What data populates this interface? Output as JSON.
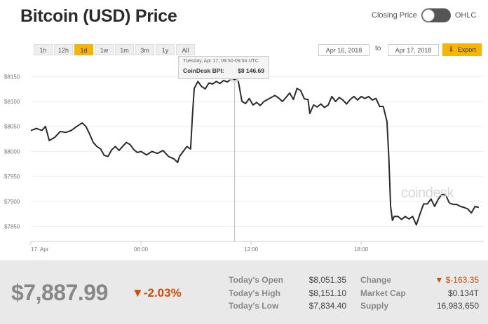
{
  "title": "Bitcoin (USD) Price",
  "toggle": {
    "left_label": "Closing Price",
    "right_label": "OHLC"
  },
  "ranges": [
    "1h",
    "12h",
    "1d",
    "1w",
    "1m",
    "3m",
    "1y",
    "All"
  ],
  "active_range": "1d",
  "date_from": "Apr 16, 2018",
  "date_to_label": "to",
  "date_to": "Apr 17, 2018",
  "export_label": "Export",
  "tooltip": {
    "date": "Tuesday, Apr 17, 09:50-09:54 UTC",
    "label": "CoinDesk BPI:",
    "value": "$8 146.69"
  },
  "watermark": "coindesk",
  "summary": {
    "price": "$7,887.99",
    "change_pct": "-2.03%",
    "stats": [
      {
        "label": "Today's Open",
        "value": "$8,051.35"
      },
      {
        "label": "Today's High",
        "value": "$8,151.10"
      },
      {
        "label": "Today's Low",
        "value": "$7,834.40"
      },
      {
        "label": "Change",
        "value": "$-163.35",
        "negative": true
      },
      {
        "label": "Market Cap",
        "value": "$0.134T"
      },
      {
        "label": "Supply",
        "value": "16,983,650"
      }
    ]
  },
  "colors": {
    "accent": "#f7b500",
    "line": "#2b2b2b",
    "negative": "#d04a0a",
    "grid": "#eeeeee"
  },
  "chart_data": {
    "type": "line",
    "x_ticks": [
      "17. Apr",
      "06:00",
      "12:00",
      "18:00"
    ],
    "y_ticks": [
      "$8150",
      "$8100",
      "$8050",
      "$8000",
      "$7950",
      "$7900",
      "$7850"
    ],
    "ylim": [
      7820,
      8170
    ],
    "x_unit": "hours since 00:00 Apr 17",
    "xlim": [
      0,
      24.6
    ],
    "series": [
      {
        "values": [
          [
            0,
            8042
          ],
          [
            0.3,
            8046
          ],
          [
            0.6,
            8042
          ],
          [
            0.8,
            8050
          ],
          [
            1.0,
            8022
          ],
          [
            1.3,
            8028
          ],
          [
            1.6,
            8040
          ],
          [
            1.9,
            8038
          ],
          [
            2.2,
            8042
          ],
          [
            2.5,
            8050
          ],
          [
            2.8,
            8057
          ],
          [
            3.0,
            8050
          ],
          [
            3.2,
            8035
          ],
          [
            3.4,
            8018
          ],
          [
            3.6,
            8010
          ],
          [
            3.8,
            8005
          ],
          [
            4.0,
            7992
          ],
          [
            4.2,
            7990
          ],
          [
            4.4,
            8003
          ],
          [
            4.6,
            8010
          ],
          [
            4.8,
            8002
          ],
          [
            5.0,
            8010
          ],
          [
            5.2,
            8018
          ],
          [
            5.4,
            8014
          ],
          [
            5.6,
            8004
          ],
          [
            5.8,
            7998
          ],
          [
            6.0,
            8000
          ],
          [
            6.3,
            7993
          ],
          [
            6.6,
            8000
          ],
          [
            6.9,
            7996
          ],
          [
            7.2,
            8002
          ],
          [
            7.5,
            7990
          ],
          [
            7.8,
            7985
          ],
          [
            8.0,
            7978
          ],
          [
            8.1,
            7990
          ],
          [
            8.3,
            8000
          ],
          [
            8.5,
            8010
          ],
          [
            8.7,
            8005
          ],
          [
            8.8,
            8070
          ],
          [
            8.9,
            8126
          ],
          [
            9.1,
            8140
          ],
          [
            9.3,
            8130
          ],
          [
            9.5,
            8125
          ],
          [
            9.7,
            8137
          ],
          [
            9.9,
            8135
          ],
          [
            10.1,
            8140
          ],
          [
            10.3,
            8136
          ],
          [
            10.5,
            8142
          ],
          [
            10.7,
            8139
          ],
          [
            10.9,
            8144
          ],
          [
            11.1,
            8146.69
          ],
          [
            11.3,
            8141
          ],
          [
            11.5,
            8100
          ],
          [
            11.7,
            8096
          ],
          [
            11.9,
            8106
          ],
          [
            12.1,
            8093
          ],
          [
            12.3,
            8098
          ],
          [
            12.5,
            8092
          ],
          [
            12.7,
            8100
          ],
          [
            12.9,
            8104
          ],
          [
            13.1,
            8108
          ],
          [
            13.3,
            8112
          ],
          [
            13.5,
            8107
          ],
          [
            13.7,
            8100
          ],
          [
            13.9,
            8108
          ],
          [
            14.1,
            8117
          ],
          [
            14.3,
            8104
          ],
          [
            14.5,
            8126
          ],
          [
            14.7,
            8122
          ],
          [
            14.9,
            8105
          ],
          [
            15.1,
            8104
          ],
          [
            15.2,
            8076
          ],
          [
            15.4,
            8093
          ],
          [
            15.6,
            8089
          ],
          [
            15.8,
            8095
          ],
          [
            16.0,
            8088
          ],
          [
            16.2,
            8093
          ],
          [
            16.4,
            8110
          ],
          [
            16.6,
            8100
          ],
          [
            16.8,
            8108
          ],
          [
            17.0,
            8103
          ],
          [
            17.2,
            8095
          ],
          [
            17.4,
            8104
          ],
          [
            17.6,
            8110
          ],
          [
            17.8,
            8103
          ],
          [
            18.0,
            8110
          ],
          [
            18.2,
            8106
          ],
          [
            18.4,
            8110
          ],
          [
            18.6,
            8103
          ],
          [
            18.8,
            8106
          ],
          [
            19.0,
            8090
          ],
          [
            19.2,
            8090
          ],
          [
            19.4,
            8060
          ],
          [
            19.5,
            7990
          ],
          [
            19.6,
            7890
          ],
          [
            19.7,
            7862
          ],
          [
            19.8,
            7870
          ],
          [
            20.0,
            7870
          ],
          [
            20.2,
            7864
          ],
          [
            20.4,
            7870
          ],
          [
            20.6,
            7865
          ],
          [
            20.8,
            7870
          ],
          [
            21.0,
            7853
          ],
          [
            21.2,
            7875
          ],
          [
            21.4,
            7895
          ],
          [
            21.6,
            7895
          ],
          [
            21.8,
            7905
          ],
          [
            22.0,
            7890
          ],
          [
            22.2,
            7905
          ],
          [
            22.4,
            7914
          ],
          [
            22.6,
            7913
          ],
          [
            22.8,
            7897
          ],
          [
            23.0,
            7894
          ],
          [
            23.2,
            7894
          ],
          [
            23.4,
            7890
          ],
          [
            23.6,
            7888
          ],
          [
            23.8,
            7885
          ],
          [
            24.0,
            7877
          ],
          [
            24.2,
            7890
          ],
          [
            24.4,
            7888
          ]
        ]
      }
    ],
    "highlight": {
      "x": 11.1,
      "y": 8146.69
    },
    "grid": true
  }
}
